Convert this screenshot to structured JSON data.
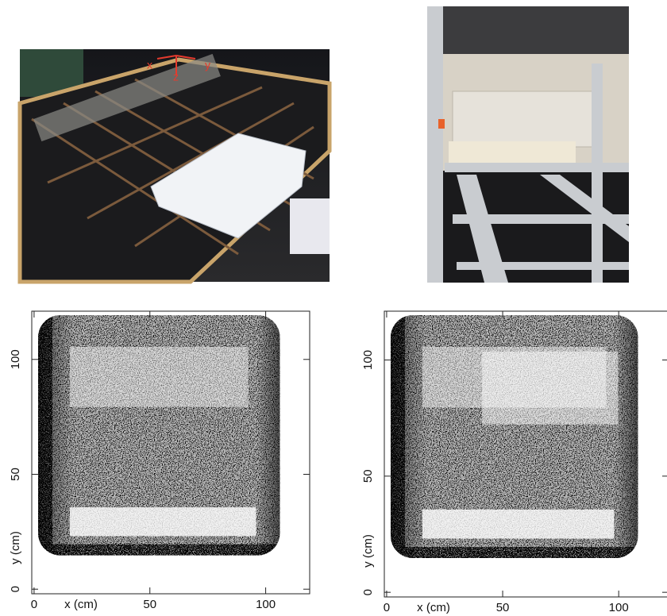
{
  "photo_left": {
    "axis_labels": [
      "x",
      "z",
      "y"
    ]
  },
  "chart_data": [
    {
      "type": "image",
      "xlabel": "x (cm)",
      "ylabel": "y (cm)",
      "xlim": [
        -1,
        119
      ],
      "ylim": [
        -2,
        121
      ],
      "xticks": [
        0,
        50,
        100
      ],
      "yticks": [
        0,
        50,
        100
      ]
    },
    {
      "type": "image",
      "xlabel": "x (cm)",
      "ylabel": "y (cm)",
      "xlim": [
        -1,
        121.5
      ],
      "ylim": [
        -2,
        121
      ],
      "xticks": [
        0,
        50,
        100
      ],
      "yticks": [
        0,
        50,
        100
      ]
    }
  ]
}
